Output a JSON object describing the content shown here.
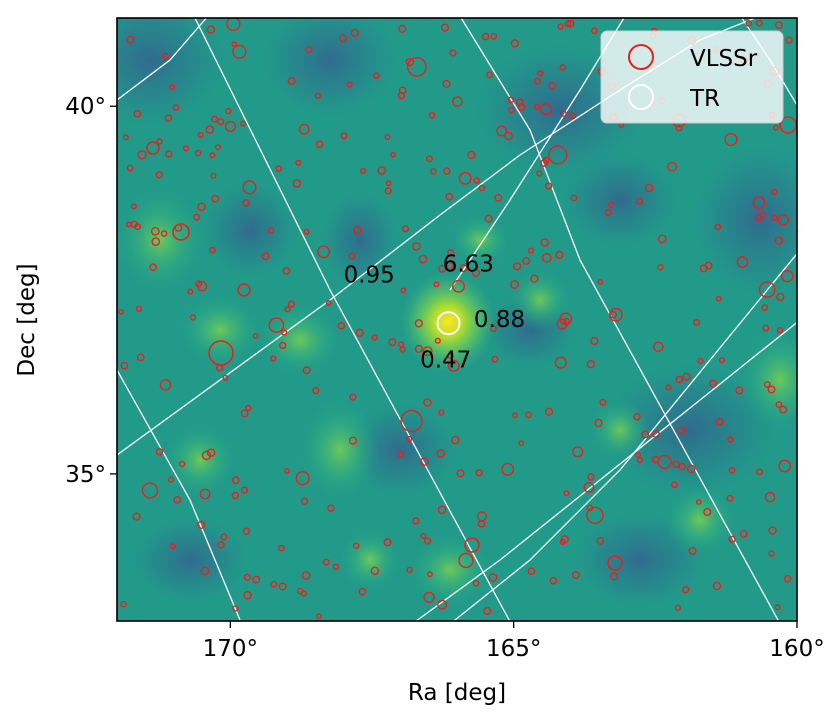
{
  "chart_data": {
    "type": "scatter",
    "title": "",
    "xlabel": "Ra [deg]",
    "ylabel": "Dec [deg]",
    "xlim": [
      172.0,
      160.0
    ],
    "ylim": [
      33.0,
      41.2
    ],
    "x_ticks": [
      {
        "value": 170,
        "label": "170°"
      },
      {
        "value": 165,
        "label": "165°"
      },
      {
        "value": 160,
        "label": "160°"
      }
    ],
    "y_ticks": [
      {
        "value": 40,
        "label": "40°"
      },
      {
        "value": 35,
        "label": "35°"
      }
    ],
    "grid": true,
    "legend_position": "top-right",
    "background": "heatmap",
    "colormap": "viridis",
    "series": [
      {
        "name": "VLSSr",
        "color": "#e8201a",
        "marker": "open-circle"
      },
      {
        "name": "TR",
        "color": "#ffffff",
        "marker": "open-circle"
      }
    ],
    "annotations": [
      {
        "text": "0.95",
        "x": 167.55,
        "y": 37.6
      },
      {
        "text": "6.63",
        "x": 165.8,
        "y": 37.75
      },
      {
        "text": "0.88",
        "x": 165.25,
        "y": 37.0
      },
      {
        "text": "0.47",
        "x": 166.2,
        "y": 36.45
      }
    ],
    "tr_source": {
      "x": 166.15,
      "y": 37.05
    }
  }
}
